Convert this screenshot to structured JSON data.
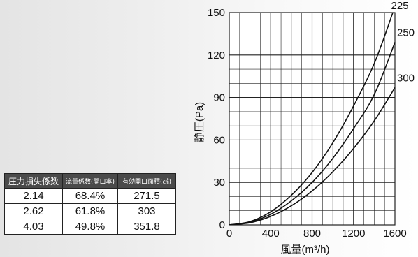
{
  "table": {
    "headers": [
      "圧力損失係数",
      "流量係数(開口率)",
      "有効開口面積(㎠)"
    ],
    "rows": [
      [
        "2.14",
        "68.4%",
        "271.5"
      ],
      [
        "2.62",
        "61.8%",
        "303"
      ],
      [
        "4.03",
        "49.8%",
        "351.8"
      ]
    ]
  },
  "chart_data": {
    "type": "line",
    "xlabel": "風量(m³/h)",
    "ylabel": "静圧(Pa)",
    "xlim": [
      0,
      1600
    ],
    "ylim": [
      0,
      150
    ],
    "x_ticks": [
      "0",
      "400",
      "800",
      "1200",
      "1600"
    ],
    "y_ticks": [
      "0",
      "30",
      "60",
      "90",
      "120",
      "150"
    ],
    "grid": true,
    "series": [
      {
        "name": "225",
        "x": [
          0,
          200,
          400,
          600,
          800,
          1000,
          1200,
          1400,
          1580
        ],
        "y": [
          0,
          2.3,
          9.3,
          21,
          37,
          58,
          84,
          114,
          150
        ]
      },
      {
        "name": "250",
        "x": [
          0,
          200,
          400,
          600,
          800,
          1000,
          1200,
          1400,
          1600
        ],
        "y": [
          0,
          1.9,
          7.5,
          17,
          30,
          47,
          68,
          92,
          129
        ]
      },
      {
        "name": "300",
        "x": [
          0,
          200,
          400,
          600,
          800,
          1000,
          1200,
          1400,
          1600
        ],
        "y": [
          0,
          1.5,
          6,
          13.5,
          24,
          37.5,
          54,
          73.5,
          97
        ]
      }
    ],
    "colors": {
      "line": "#111111",
      "grid": "#222222"
    }
  }
}
